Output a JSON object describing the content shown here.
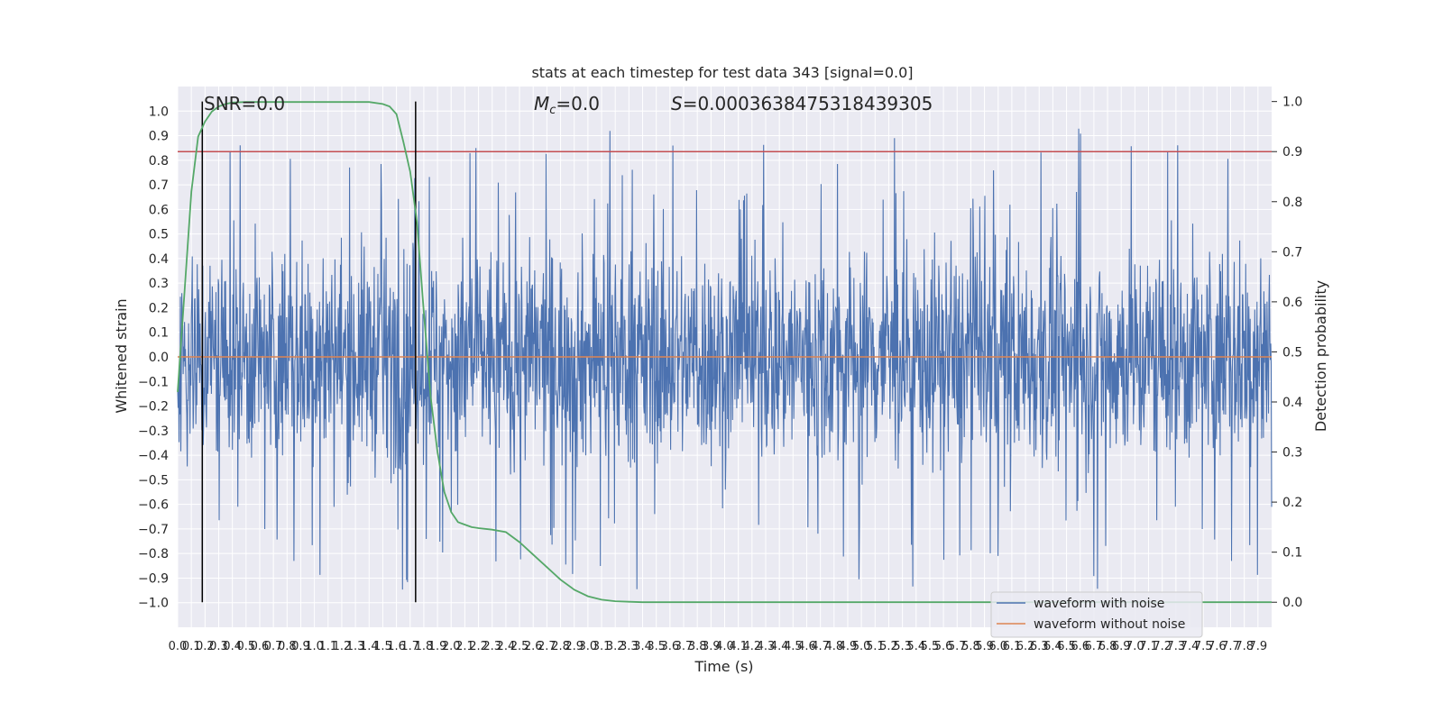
{
  "chart_data": {
    "type": "line",
    "title": "stats at each timestep for test data 343 [signal=0.0]",
    "xlabel": "Time (s)",
    "ylabel": "Whitened strain",
    "ylabel_right": "Detection probability",
    "xlim": [
      0,
      8
    ],
    "ylim": [
      -1.1,
      1.1
    ],
    "ylim_right": [
      -0.05,
      1.03
    ],
    "x_ticks": [
      "0.0",
      "0.1",
      "0.2",
      "0.3",
      "0.4",
      "0.5",
      "0.6",
      "0.7",
      "0.8",
      "0.9",
      "1.0",
      "1.1",
      "1.2",
      "1.3",
      "1.4",
      "1.5",
      "1.6",
      "1.7",
      "1.8",
      "1.9",
      "2.0",
      "2.1",
      "2.2",
      "2.3",
      "2.4",
      "2.5",
      "2.6",
      "2.7",
      "2.8",
      "2.9",
      "3.0",
      "3.1",
      "3.2",
      "3.3",
      "3.4",
      "3.5",
      "3.6",
      "3.7",
      "3.8",
      "3.9",
      "4.0",
      "4.1",
      "4.2",
      "4.3",
      "4.4",
      "4.5",
      "4.6",
      "4.7",
      "4.8",
      "4.9",
      "5.0",
      "5.1",
      "5.2",
      "5.3",
      "5.4",
      "5.5",
      "5.6",
      "5.7",
      "5.8",
      "5.9",
      "6.0",
      "6.1",
      "6.2",
      "6.3",
      "6.4",
      "6.5",
      "6.6",
      "6.7",
      "6.8",
      "6.9",
      "7.0",
      "7.1",
      "7.2",
      "7.3",
      "7.4",
      "7.5",
      "7.6",
      "7.7",
      "7.8",
      "7.9"
    ],
    "y_ticks": [
      "−1.0",
      "−0.9",
      "−0.8",
      "−0.7",
      "−0.6",
      "−0.5",
      "−0.4",
      "−0.3",
      "−0.2",
      "−0.1",
      "0.0",
      "0.1",
      "0.2",
      "0.3",
      "0.4",
      "0.5",
      "0.6",
      "0.7",
      "0.8",
      "0.9",
      "1.0"
    ],
    "y_ticks_right": [
      "0.0",
      "0.1",
      "0.2",
      "0.3",
      "0.4",
      "0.5",
      "0.6",
      "0.7",
      "0.8",
      "0.9",
      "1.0"
    ],
    "annotations": {
      "snr": "SNR=0.0",
      "mc_symbol": "M",
      "mc_sub": "c",
      "mc_value": "=0.0",
      "s_symbol": "S",
      "s_value": "=0.0003638475318439305"
    },
    "vertical_lines_x": [
      0.18,
      1.74
    ],
    "threshold_right": 0.9,
    "series": [
      {
        "name": "waveform with noise",
        "color": "#4c72b0",
        "style": "dense noise, mostly within ±0.65"
      },
      {
        "name": "waveform without noise",
        "color": "#dd8452",
        "values_constant": 0.0
      },
      {
        "color": "#55a868",
        "axis": "right",
        "x": [
          0.0,
          0.05,
          0.1,
          0.15,
          0.2,
          0.25,
          0.3,
          0.35,
          0.4,
          0.5,
          0.6,
          0.8,
          1.0,
          1.2,
          1.4,
          1.5,
          1.55,
          1.6,
          1.65,
          1.7,
          1.75,
          1.8,
          1.85,
          1.9,
          1.95,
          2.0,
          2.05,
          2.1,
          2.15,
          2.2,
          2.3,
          2.4,
          2.5,
          2.6,
          2.7,
          2.8,
          2.9,
          3.0,
          3.1,
          3.2,
          3.3,
          3.4,
          3.6,
          4.0,
          5.0,
          6.0,
          7.0,
          8.0
        ],
        "values": [
          0.42,
          0.62,
          0.82,
          0.93,
          0.96,
          0.98,
          0.99,
          0.995,
          0.998,
          0.999,
          0.999,
          0.999,
          0.999,
          0.999,
          0.999,
          0.995,
          0.99,
          0.975,
          0.92,
          0.86,
          0.76,
          0.58,
          0.41,
          0.3,
          0.22,
          0.18,
          0.16,
          0.155,
          0.15,
          0.148,
          0.145,
          0.14,
          0.12,
          0.095,
          0.07,
          0.045,
          0.025,
          0.012,
          0.005,
          0.002,
          0.001,
          0.0,
          0.0,
          0.0,
          0.0,
          0.0,
          0.0,
          0.0
        ]
      }
    ],
    "legend_position": "lower-right",
    "grid": true,
    "colors": {
      "background": "#eaeaf2",
      "grid": "#ffffff",
      "noise": "#4c72b0",
      "clean": "#dd8452",
      "probability": "#55a868",
      "threshold": "#c44e52",
      "vlines": "#000000"
    }
  }
}
